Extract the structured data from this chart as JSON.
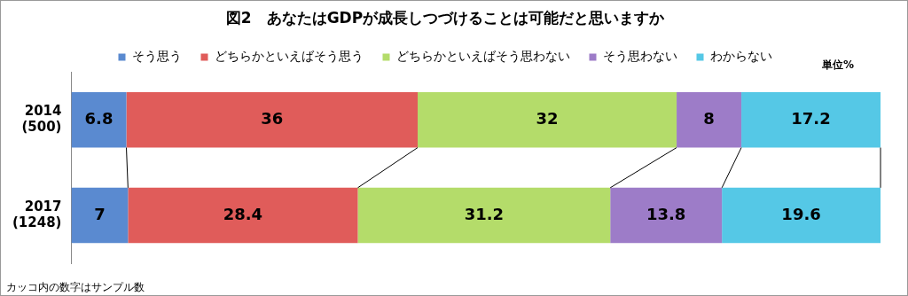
{
  "chart_data": {
    "type": "bar",
    "orientation": "horizontal",
    "stacked": true,
    "data_labels": true,
    "legend": "top",
    "title": "図2　あなたはGDPが成長しつづけることは可能だと思いますか",
    "categories": [
      "2014 (500)",
      "2017 (1248)"
    ],
    "series": [
      {
        "name": "そう思う",
        "color": "#5a8ad0",
        "values": [
          6.8,
          7
        ]
      },
      {
        "name": "どちらかといえばそう思う",
        "color": "#e05c5a",
        "values": [
          36,
          28.4
        ]
      },
      {
        "name": "どちらかといえばそう思わない",
        "color": "#b4dc6a",
        "values": [
          32,
          31.2
        ]
      },
      {
        "name": "そう思わない",
        "color": "#9d7cc8",
        "values": [
          8,
          13.8
        ]
      },
      {
        "name": "わからない",
        "color": "#55c8e6",
        "values": [
          17.2,
          19.6
        ]
      }
    ],
    "annotations": [
      "単位%",
      "カッコ内の数字はサンプル数"
    ]
  }
}
